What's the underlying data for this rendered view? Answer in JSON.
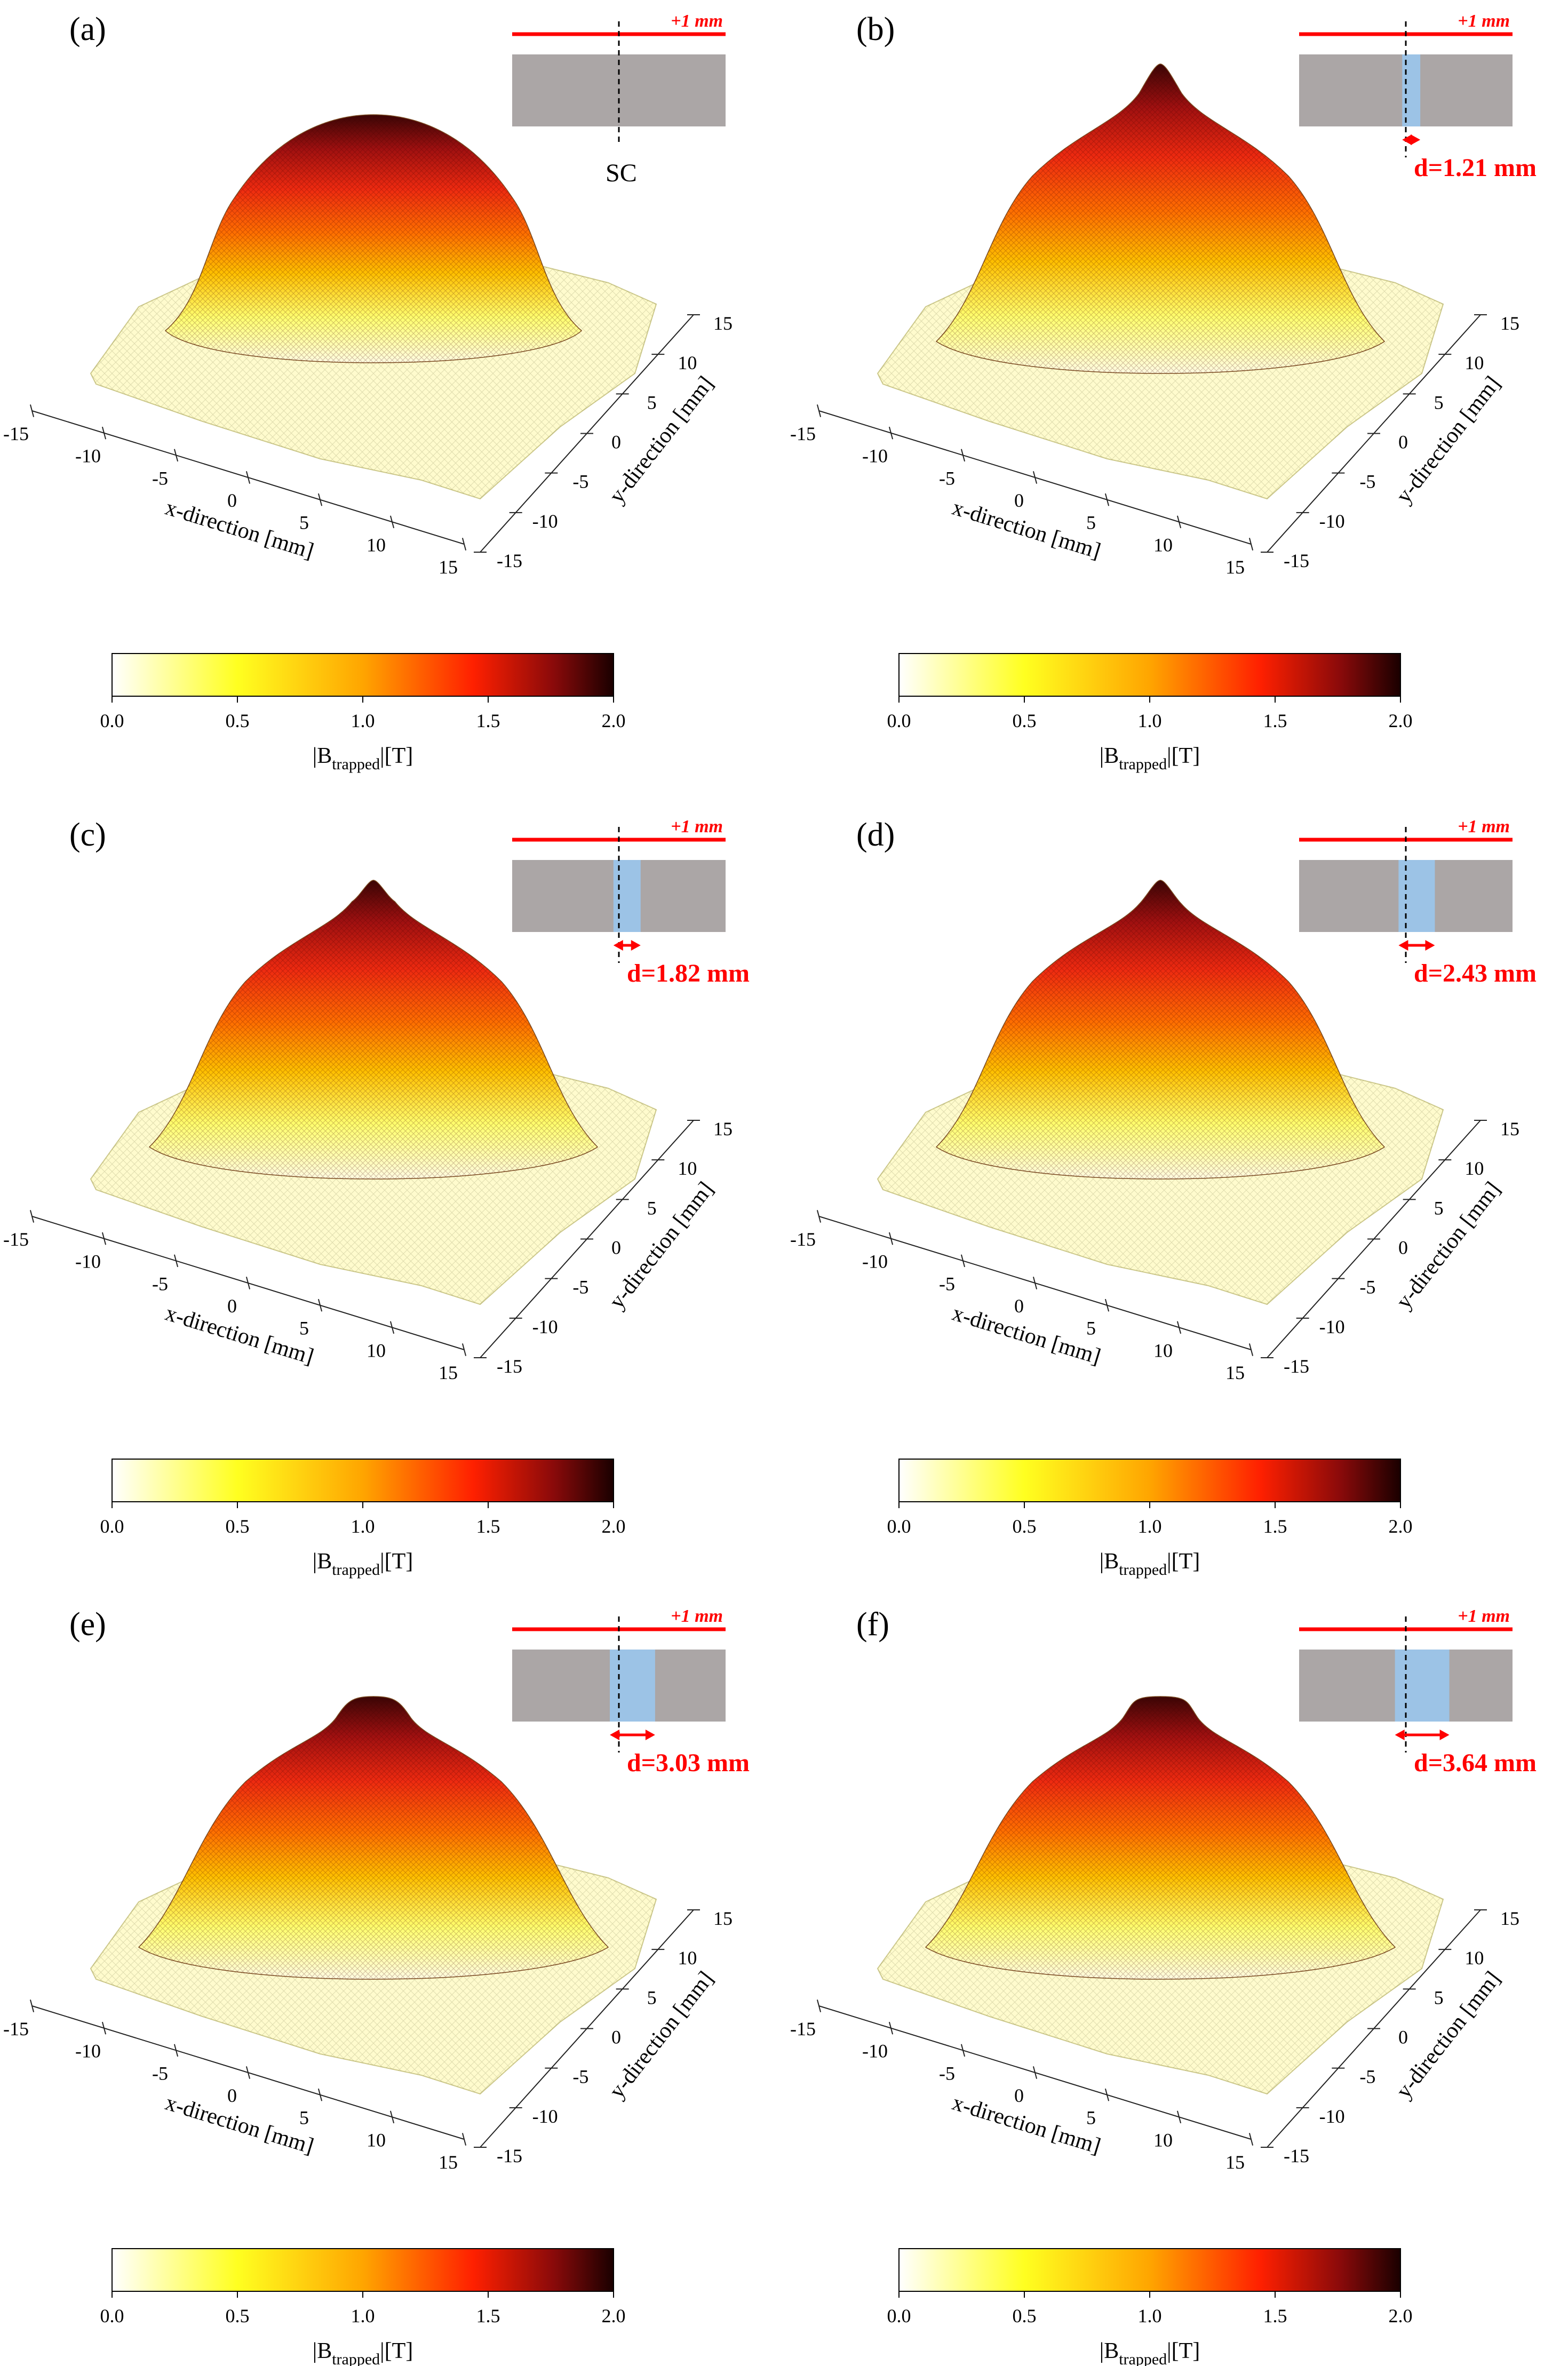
{
  "chart_data": [
    {
      "panel": "(a)",
      "type": "surface3d",
      "inset_label": "SC",
      "inset_top_label": "+1 mm",
      "groove_width_mm": 0,
      "peak_shape": "dome",
      "xlabel": "x-direction [mm]",
      "ylabel": "y-direction [mm]",
      "xticks": [
        -15,
        -10,
        -5,
        0,
        5,
        10,
        15
      ],
      "yticks": [
        -15,
        -10,
        -5,
        0,
        5,
        10,
        15
      ],
      "xlim": [
        -15,
        15
      ],
      "ylim": [
        -15,
        15
      ],
      "zlim": [
        0,
        2.0
      ],
      "peak_value_T": 1.85,
      "colorbar": {
        "label_main": "|B",
        "label_sub": "trapped",
        "label_end": "|[T]",
        "ticks": [
          "0.0",
          "0.5",
          "1.0",
          "1.5",
          "2.0"
        ],
        "range": [
          0,
          2.0
        ]
      }
    },
    {
      "panel": "(b)",
      "type": "surface3d",
      "inset_label": "d=1.21 mm",
      "inset_top_label": "+1 mm",
      "groove_width_mm": 1.21,
      "peak_shape": "spike",
      "xlabel": "x-direction [mm]",
      "ylabel": "y-direction [mm]",
      "xticks": [
        -15,
        -10,
        -5,
        0,
        5,
        10,
        15
      ],
      "yticks": [
        -15,
        -10,
        -5,
        0,
        5,
        10,
        15
      ],
      "xlim": [
        -15,
        15
      ],
      "ylim": [
        -15,
        15
      ],
      "zlim": [
        0,
        2.0
      ],
      "peak_value_T": 2.0,
      "colorbar": {
        "label_main": "|B",
        "label_sub": "trapped",
        "label_end": "|[T]",
        "ticks": [
          "0.0",
          "0.5",
          "1.0",
          "1.5",
          "2.0"
        ],
        "range": [
          0,
          2.0
        ]
      }
    },
    {
      "panel": "(c)",
      "type": "surface3d",
      "inset_label": "d=1.82 mm",
      "inset_top_label": "+1 mm",
      "groove_width_mm": 1.82,
      "peak_shape": "spike",
      "xlabel": "x-direction [mm]",
      "ylabel": "y-direction [mm]",
      "xticks": [
        -15,
        -10,
        -5,
        0,
        5,
        10,
        15
      ],
      "yticks": [
        -15,
        -10,
        -5,
        0,
        5,
        10,
        15
      ],
      "xlim": [
        -15,
        15
      ],
      "ylim": [
        -15,
        15
      ],
      "zlim": [
        0,
        2.0
      ],
      "peak_value_T": 2.0,
      "colorbar": {
        "label_main": "|B",
        "label_sub": "trapped",
        "label_end": "|[T]",
        "ticks": [
          "0.0",
          "0.5",
          "1.0",
          "1.5",
          "2.0"
        ],
        "range": [
          0,
          2.0
        ]
      }
    },
    {
      "panel": "(d)",
      "type": "surface3d",
      "inset_label": "d=2.43 mm",
      "inset_top_label": "+1 mm",
      "groove_width_mm": 2.43,
      "peak_shape": "spike",
      "xlabel": "x-direction [mm]",
      "ylabel": "y-direction [mm]",
      "xticks": [
        -15,
        -10,
        -5,
        0,
        5,
        10,
        15
      ],
      "yticks": [
        -15,
        -10,
        -5,
        0,
        5,
        10,
        15
      ],
      "xlim": [
        -15,
        15
      ],
      "ylim": [
        -15,
        15
      ],
      "zlim": [
        0,
        2.0
      ],
      "peak_value_T": 2.0,
      "colorbar": {
        "label_main": "|B",
        "label_sub": "trapped",
        "label_end": "|[T]",
        "ticks": [
          "0.0",
          "0.5",
          "1.0",
          "1.5",
          "2.0"
        ],
        "range": [
          0,
          2.0
        ]
      }
    },
    {
      "panel": "(e)",
      "type": "surface3d",
      "inset_label": "d=3.03 mm",
      "inset_top_label": "+1 mm",
      "groove_width_mm": 3.03,
      "peak_shape": "flat-top",
      "xlabel": "x-direction [mm]",
      "ylabel": "y-direction [mm]",
      "xticks": [
        -15,
        -10,
        -5,
        0,
        5,
        10,
        15
      ],
      "yticks": [
        -15,
        -10,
        -5,
        0,
        5,
        10,
        15
      ],
      "xlim": [
        -15,
        15
      ],
      "ylim": [
        -15,
        15
      ],
      "zlim": [
        0,
        2.0
      ],
      "peak_value_T": 2.0,
      "colorbar": {
        "label_main": "|B",
        "label_sub": "trapped",
        "label_end": "|[T]",
        "ticks": [
          "0.0",
          "0.5",
          "1.0",
          "1.5",
          "2.0"
        ],
        "range": [
          0,
          2.0
        ]
      }
    },
    {
      "panel": "(f)",
      "type": "surface3d",
      "inset_label": "d=3.64 mm",
      "inset_top_label": "+1 mm",
      "groove_width_mm": 3.64,
      "peak_shape": "flat-top",
      "xlabel": "x-direction [mm]",
      "ylabel": "y-direction [mm]",
      "xticks": [
        -15,
        -10,
        -5,
        0,
        5,
        10,
        15
      ],
      "yticks": [
        -15,
        -10,
        -5,
        0,
        5,
        10,
        15
      ],
      "xlim": [
        -15,
        15
      ],
      "ylim": [
        -15,
        15
      ],
      "zlim": [
        0,
        2.0
      ],
      "peak_value_T": 2.0,
      "colorbar": {
        "label_main": "|B",
        "label_sub": "trapped",
        "label_end": "|[T]",
        "ticks": [
          "0.0",
          "0.5",
          "1.0",
          "1.5",
          "2.0"
        ],
        "range": [
          0,
          2.0
        ]
      }
    }
  ],
  "colors": {
    "accent": "#ff0000",
    "sc_gray": "#aba6a6",
    "groove_blue": "#9cc3e6",
    "axis": "#222222"
  }
}
